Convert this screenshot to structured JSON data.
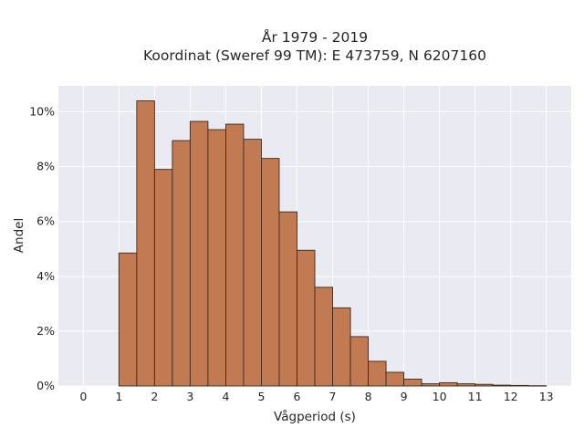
{
  "chart_data": {
    "type": "bar",
    "title_lines": [
      "År 1979 - 2019",
      "Koordinat (Sweref 99 TM): E 473759, N 6207160"
    ],
    "xlabel": "Vågperiod (s)",
    "ylabel": "Andel",
    "x_ticks": [
      0,
      1,
      2,
      3,
      4,
      5,
      6,
      7,
      8,
      9,
      10,
      11,
      12,
      13
    ],
    "y_ticks": [
      0,
      2,
      4,
      6,
      8,
      10
    ],
    "y_tick_suffix": "%",
    "xlim": [
      -0.7,
      13.7
    ],
    "ylim": [
      0,
      10.95
    ],
    "bin_width": 0.5,
    "bin_starts": [
      1.0,
      1.5,
      2.0,
      2.5,
      3.0,
      3.5,
      4.0,
      4.5,
      5.0,
      5.5,
      6.0,
      6.5,
      7.0,
      7.5,
      8.0,
      8.5,
      9.0,
      9.5,
      10.0,
      10.5,
      11.0,
      11.5,
      12.0,
      12.5
    ],
    "values": [
      4.85,
      10.4,
      7.9,
      8.95,
      9.65,
      9.35,
      9.55,
      9.0,
      8.3,
      6.35,
      4.95,
      3.6,
      2.85,
      1.8,
      0.9,
      0.5,
      0.25,
      0.08,
      0.12,
      0.08,
      0.06,
      0.03,
      0.02,
      0.01
    ],
    "grid": true,
    "colors": {
      "bar_fill": "#c17a52",
      "bar_edge": "#3d2a1e",
      "plot_background": "#eaeaf2",
      "grid": "#ffffff",
      "text": "#262626"
    }
  }
}
